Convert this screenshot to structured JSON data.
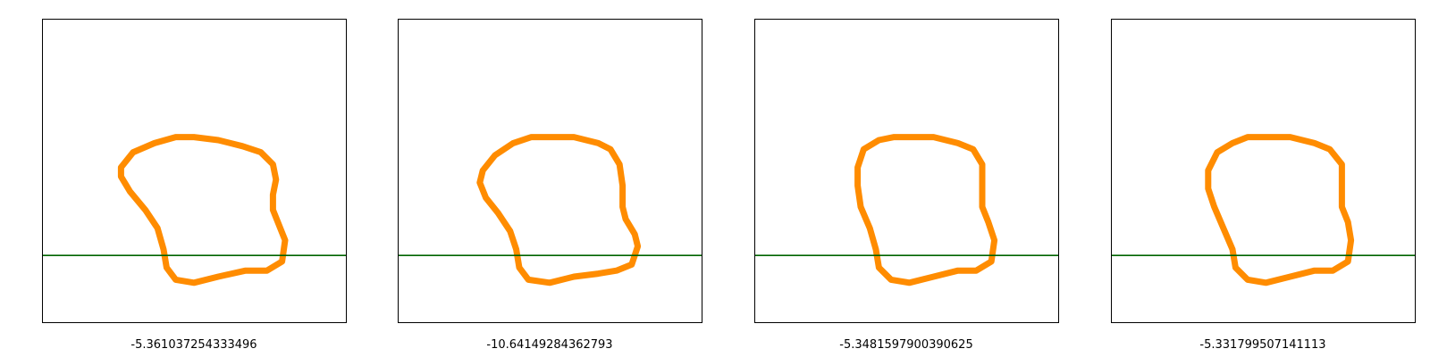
{
  "chart_data": [
    {
      "type": "line",
      "caption": "-5.361037254333496",
      "title": "",
      "xlabel": "",
      "ylabel": "",
      "grid": false,
      "xlim": [
        0,
        1
      ],
      "ylim": [
        0,
        1
      ],
      "contour_color": "#ff8c00",
      "hline_color": "#006400",
      "hline_y": 0.22,
      "series": [
        {
          "x": [
            0.5,
            0.58,
            0.66,
            0.72,
            0.76,
            0.77,
            0.76,
            0.76,
            0.78,
            0.8,
            0.79,
            0.74,
            0.67,
            0.58,
            0.5,
            0.44,
            0.41,
            0.4,
            0.38,
            0.34,
            0.29,
            0.26,
            0.26,
            0.3,
            0.37,
            0.44,
            0.5
          ],
          "y": [
            0.61,
            0.6,
            0.58,
            0.56,
            0.52,
            0.47,
            0.42,
            0.37,
            0.32,
            0.27,
            0.2,
            0.17,
            0.17,
            0.15,
            0.13,
            0.14,
            0.18,
            0.24,
            0.31,
            0.37,
            0.43,
            0.48,
            0.51,
            0.56,
            0.59,
            0.61,
            0.61
          ]
        }
      ]
    },
    {
      "type": "line",
      "caption": "-10.64149284362793",
      "title": "",
      "xlabel": "",
      "ylabel": "",
      "grid": false,
      "xlim": [
        0,
        1
      ],
      "ylim": [
        0,
        1
      ],
      "contour_color": "#ff8c00",
      "hline_color": "#006400",
      "hline_y": 0.22,
      "series": [
        {
          "x": [
            0.5,
            0.58,
            0.66,
            0.7,
            0.73,
            0.74,
            0.74,
            0.75,
            0.78,
            0.79,
            0.77,
            0.72,
            0.66,
            0.58,
            0.5,
            0.43,
            0.4,
            0.39,
            0.37,
            0.33,
            0.29,
            0.27,
            0.28,
            0.32,
            0.38,
            0.44,
            0.5
          ],
          "y": [
            0.61,
            0.61,
            0.59,
            0.57,
            0.52,
            0.45,
            0.38,
            0.34,
            0.29,
            0.25,
            0.19,
            0.17,
            0.16,
            0.15,
            0.13,
            0.14,
            0.18,
            0.24,
            0.3,
            0.36,
            0.41,
            0.46,
            0.5,
            0.55,
            0.59,
            0.61,
            0.61
          ]
        }
      ]
    },
    {
      "type": "line",
      "caption": "-5.3481597900390625",
      "title": "",
      "xlabel": "",
      "ylabel": "",
      "grid": false,
      "xlim": [
        0,
        1
      ],
      "ylim": [
        0,
        1
      ],
      "contour_color": "#ff8c00",
      "hline_color": "#006400",
      "hline_y": 0.22,
      "series": [
        {
          "x": [
            0.52,
            0.59,
            0.67,
            0.72,
            0.75,
            0.75,
            0.75,
            0.77,
            0.79,
            0.78,
            0.73,
            0.67,
            0.59,
            0.51,
            0.45,
            0.41,
            0.4,
            0.38,
            0.35,
            0.34,
            0.34,
            0.36,
            0.41,
            0.46,
            0.52
          ],
          "y": [
            0.61,
            0.61,
            0.59,
            0.57,
            0.52,
            0.45,
            0.38,
            0.33,
            0.27,
            0.2,
            0.17,
            0.17,
            0.15,
            0.13,
            0.14,
            0.18,
            0.24,
            0.31,
            0.38,
            0.45,
            0.51,
            0.57,
            0.6,
            0.61,
            0.61
          ]
        }
      ]
    },
    {
      "type": "line",
      "caption": "-5.331799507141113",
      "title": "",
      "xlabel": "",
      "ylabel": "",
      "grid": false,
      "xlim": [
        0,
        1
      ],
      "ylim": [
        0,
        1
      ],
      "contour_color": "#ff8c00",
      "hline_color": "#006400",
      "hline_y": 0.22,
      "series": [
        {
          "x": [
            0.51,
            0.59,
            0.67,
            0.72,
            0.76,
            0.76,
            0.76,
            0.78,
            0.79,
            0.78,
            0.73,
            0.67,
            0.59,
            0.51,
            0.45,
            0.41,
            0.4,
            0.37,
            0.34,
            0.32,
            0.32,
            0.35,
            0.4,
            0.45,
            0.51
          ],
          "y": [
            0.61,
            0.61,
            0.59,
            0.57,
            0.52,
            0.46,
            0.38,
            0.33,
            0.27,
            0.2,
            0.17,
            0.17,
            0.15,
            0.13,
            0.14,
            0.18,
            0.24,
            0.31,
            0.38,
            0.44,
            0.5,
            0.56,
            0.59,
            0.61,
            0.61
          ]
        }
      ]
    }
  ]
}
